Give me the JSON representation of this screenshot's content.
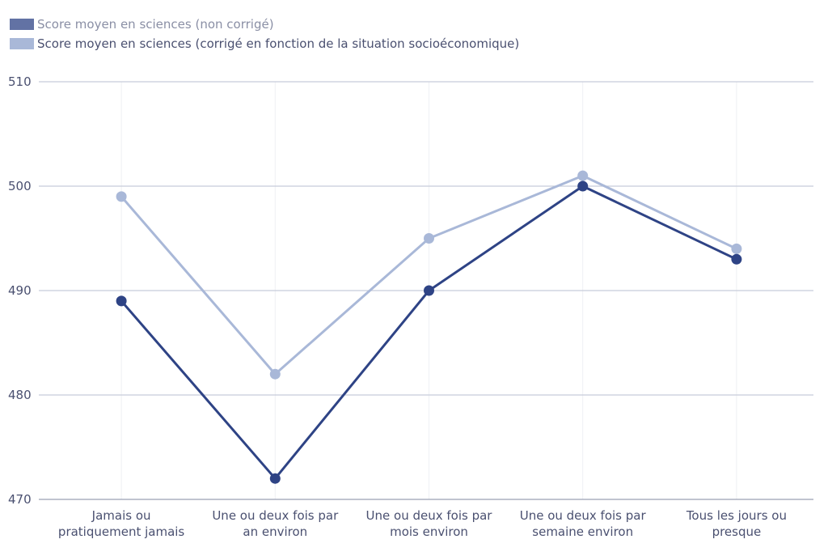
{
  "chart_data": {
    "type": "line",
    "categories": [
      [
        "Jamais ou",
        "pratiquement jamais"
      ],
      [
        "Une ou deux fois par",
        "an environ"
      ],
      [
        "Une ou deux fois par",
        "mois environ"
      ],
      [
        "Une ou deux fois par",
        "semaine environ"
      ],
      [
        "Tous les jours ou",
        "presque"
      ]
    ],
    "series": [
      {
        "name": "Score moyen en sciences (non corrigé)",
        "color": "#2e4385",
        "values": [
          489,
          472,
          490,
          500,
          493
        ]
      },
      {
        "name": "Score moyen en sciences (corrigé en fonction de la situation socioéconomique)",
        "color": "#a9b8d8",
        "values": [
          499,
          482,
          495,
          501,
          494
        ]
      }
    ],
    "ylim": [
      470,
      510
    ],
    "yticks": [
      470,
      480,
      490,
      500,
      510
    ],
    "grid": true
  }
}
